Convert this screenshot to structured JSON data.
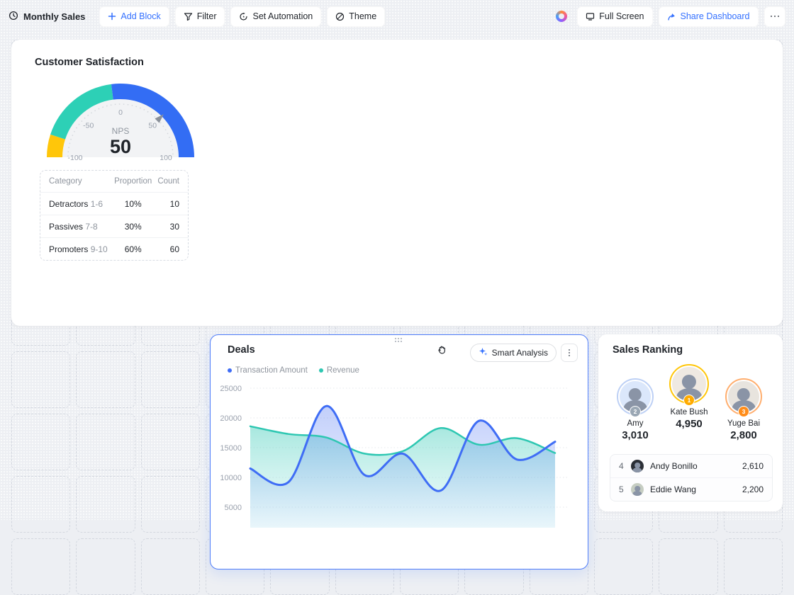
{
  "toolbar": {
    "title": "Monthly Sales",
    "add_block": "Add Block",
    "filter": "Filter",
    "set_automation": "Set Automation",
    "theme": "Theme",
    "full_screen": "Full Screen",
    "share": "Share Dashboard"
  },
  "cards": {
    "customer_satisfaction": {
      "title": "Customer Satisfaction",
      "gauge": {
        "metric": "NPS",
        "value": 50,
        "min": -100,
        "max": 100,
        "ticks": [
          "-100",
          "-50",
          "0",
          "50",
          "100"
        ],
        "segments": [
          {
            "from": -100,
            "to": -80,
            "color": "#ffc60a"
          },
          {
            "from": -80,
            "to": -8,
            "color": "#2dd0b6"
          },
          {
            "from": -8,
            "to": 100,
            "color": "#336df4"
          }
        ]
      },
      "table": {
        "headers": [
          "Category",
          "Proportion",
          "Count"
        ],
        "rows": [
          {
            "name": "Detractors",
            "range": "1-6",
            "proportion": "10%",
            "count": "10"
          },
          {
            "name": "Passives",
            "range": "7-8",
            "proportion": "30%",
            "count": "30"
          },
          {
            "name": "Promoters",
            "range": "9-10",
            "proportion": "60%",
            "count": "60"
          }
        ]
      }
    },
    "deals": {
      "title": "Deals",
      "smart_analysis": "Smart Analysis",
      "legend": [
        {
          "label": "Transaction Amount",
          "color": "#3f6df5"
        },
        {
          "label": "Revenue",
          "color": "#2ec7b2"
        }
      ],
      "chart_data": {
        "type": "area",
        "x": [
          0,
          1,
          2,
          3,
          4,
          5,
          6,
          7,
          8
        ],
        "series": [
          {
            "name": "Transaction Amount",
            "color": "#3f6df5",
            "values": [
              11500,
              9200,
              22000,
              10400,
              14000,
              7800,
              19500,
              13000,
              16000
            ]
          },
          {
            "name": "Revenue",
            "color": "#2ec7b2",
            "values": [
              18600,
              17300,
              16700,
              14000,
              14400,
              18300,
              15500,
              16600,
              14100
            ]
          }
        ],
        "ylim": [
          5000,
          25000
        ],
        "yticks": [
          25000,
          20000,
          15000,
          10000,
          5000
        ],
        "grid": true,
        "legend_position": "top-left"
      }
    },
    "sales_ranking": {
      "title": "Sales Ranking",
      "podium": [
        {
          "rank": "2",
          "name": "Amy",
          "value": "3,010",
          "ring": "#bdd0f5",
          "badge": "#9aa7b4",
          "photo_bg": "#dbe7fb"
        },
        {
          "rank": "1",
          "name": "Kate Bush",
          "value": "4,950",
          "ring": "#ffc60a",
          "badge": "#ffab00",
          "photo_bg": "#efe9e2"
        },
        {
          "rank": "3",
          "name": "Yuge Bai",
          "value": "2,800",
          "ring": "#ffae6e",
          "badge": "#ff8d1a",
          "photo_bg": "#e8e4de"
        }
      ],
      "list": [
        {
          "rank": "4",
          "name": "Andy Bonillo",
          "value": "2,610",
          "photo_bg": "#2b2f36"
        },
        {
          "rank": "5",
          "name": "Eddie Wang",
          "value": "2,200",
          "photo_bg": "#c6cdc2"
        }
      ]
    }
  }
}
